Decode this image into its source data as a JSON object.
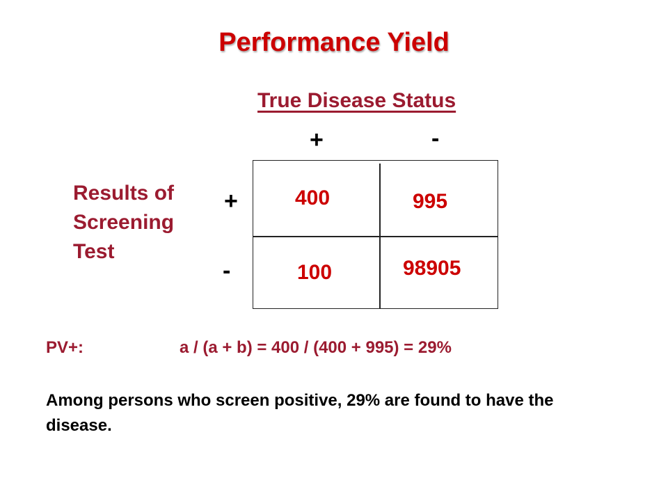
{
  "slide": {
    "title": "Performance Yield",
    "colors": {
      "accent": "#cc0000",
      "label": "#9b1b30",
      "text": "#000000"
    },
    "column_header": "True Disease Status",
    "column_signs": [
      "+",
      "-"
    ],
    "row_header": "Results of Screening Test",
    "row_signs": [
      "+",
      "-"
    ],
    "cells": {
      "a": "400",
      "b": "995",
      "c": "100",
      "d": "98905"
    },
    "formula": {
      "label": "PV+:",
      "expression": "a / (a + b) = 400 / (400 + 995) = 29%"
    },
    "conclusion": "Among persons who screen positive, 29% are found to have the disease."
  }
}
